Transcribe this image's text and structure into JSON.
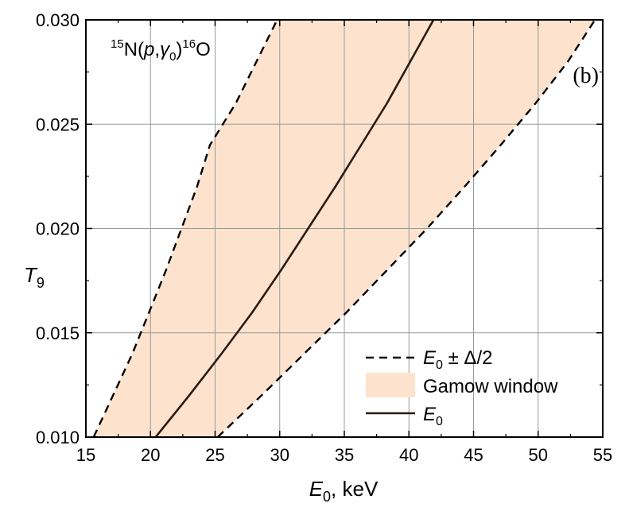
{
  "chart_data": {
    "type": "line",
    "panel_label": "(b)",
    "reaction": {
      "mass_target": "15",
      "target": "N",
      "open": "(",
      "projectile": "p",
      "comma": ",",
      "gamma": "γ",
      "gamma_sub": "0",
      "close": ")",
      "mass_product": "16",
      "product": "O"
    },
    "xlabel": {
      "symbol": "E",
      "sub": "0",
      "suffix": ", keV"
    },
    "ylabel": {
      "symbol": "T",
      "sub": "9"
    },
    "xlim": [
      15,
      55
    ],
    "ylim": [
      0.01,
      0.03
    ],
    "xticks": [
      "15",
      "20",
      "25",
      "30",
      "35",
      "40",
      "45",
      "50",
      "55"
    ],
    "yticks": [
      "0.010",
      "0.015",
      "0.020",
      "0.025",
      "0.030"
    ],
    "grid": true,
    "legend_position": "bottom-right",
    "legend": [
      {
        "key": "bounds",
        "symbol": "E",
        "sub": "0",
        "rest": " ± Δ/2",
        "style": "dashed"
      },
      {
        "key": "window",
        "text": "Gamow window",
        "style": "fill"
      },
      {
        "key": "center",
        "symbol": "E",
        "sub": "0",
        "rest": "",
        "style": "solid"
      }
    ],
    "T9": [
      0.01,
      0.012,
      0.014,
      0.016,
      0.018,
      0.02,
      0.022,
      0.024,
      0.026,
      0.028,
      0.03
    ],
    "series": [
      {
        "key": "center",
        "name": "E0",
        "x": [
          20.4,
          23.0,
          25.5,
          27.9,
          30.1,
          32.2,
          34.3,
          36.3,
          38.3,
          40.1,
          41.9
        ]
      },
      {
        "key": "lower",
        "name": "E0 − Δ/2",
        "x": [
          15.6,
          17.1,
          18.6,
          19.9,
          21.2,
          22.4,
          23.6,
          24.6,
          26.6,
          28.2,
          29.8
        ]
      },
      {
        "key": "upper",
        "name": "E0 + Δ/2",
        "x": [
          25.2,
          28.6,
          31.9,
          35.2,
          38.3,
          41.4,
          44.3,
          47.1,
          49.8,
          52.3,
          54.4
        ]
      }
    ],
    "colors": {
      "window": "#fde3cd",
      "center": "#2b1a12",
      "bounds": "#000000",
      "grid": "#999999"
    }
  }
}
